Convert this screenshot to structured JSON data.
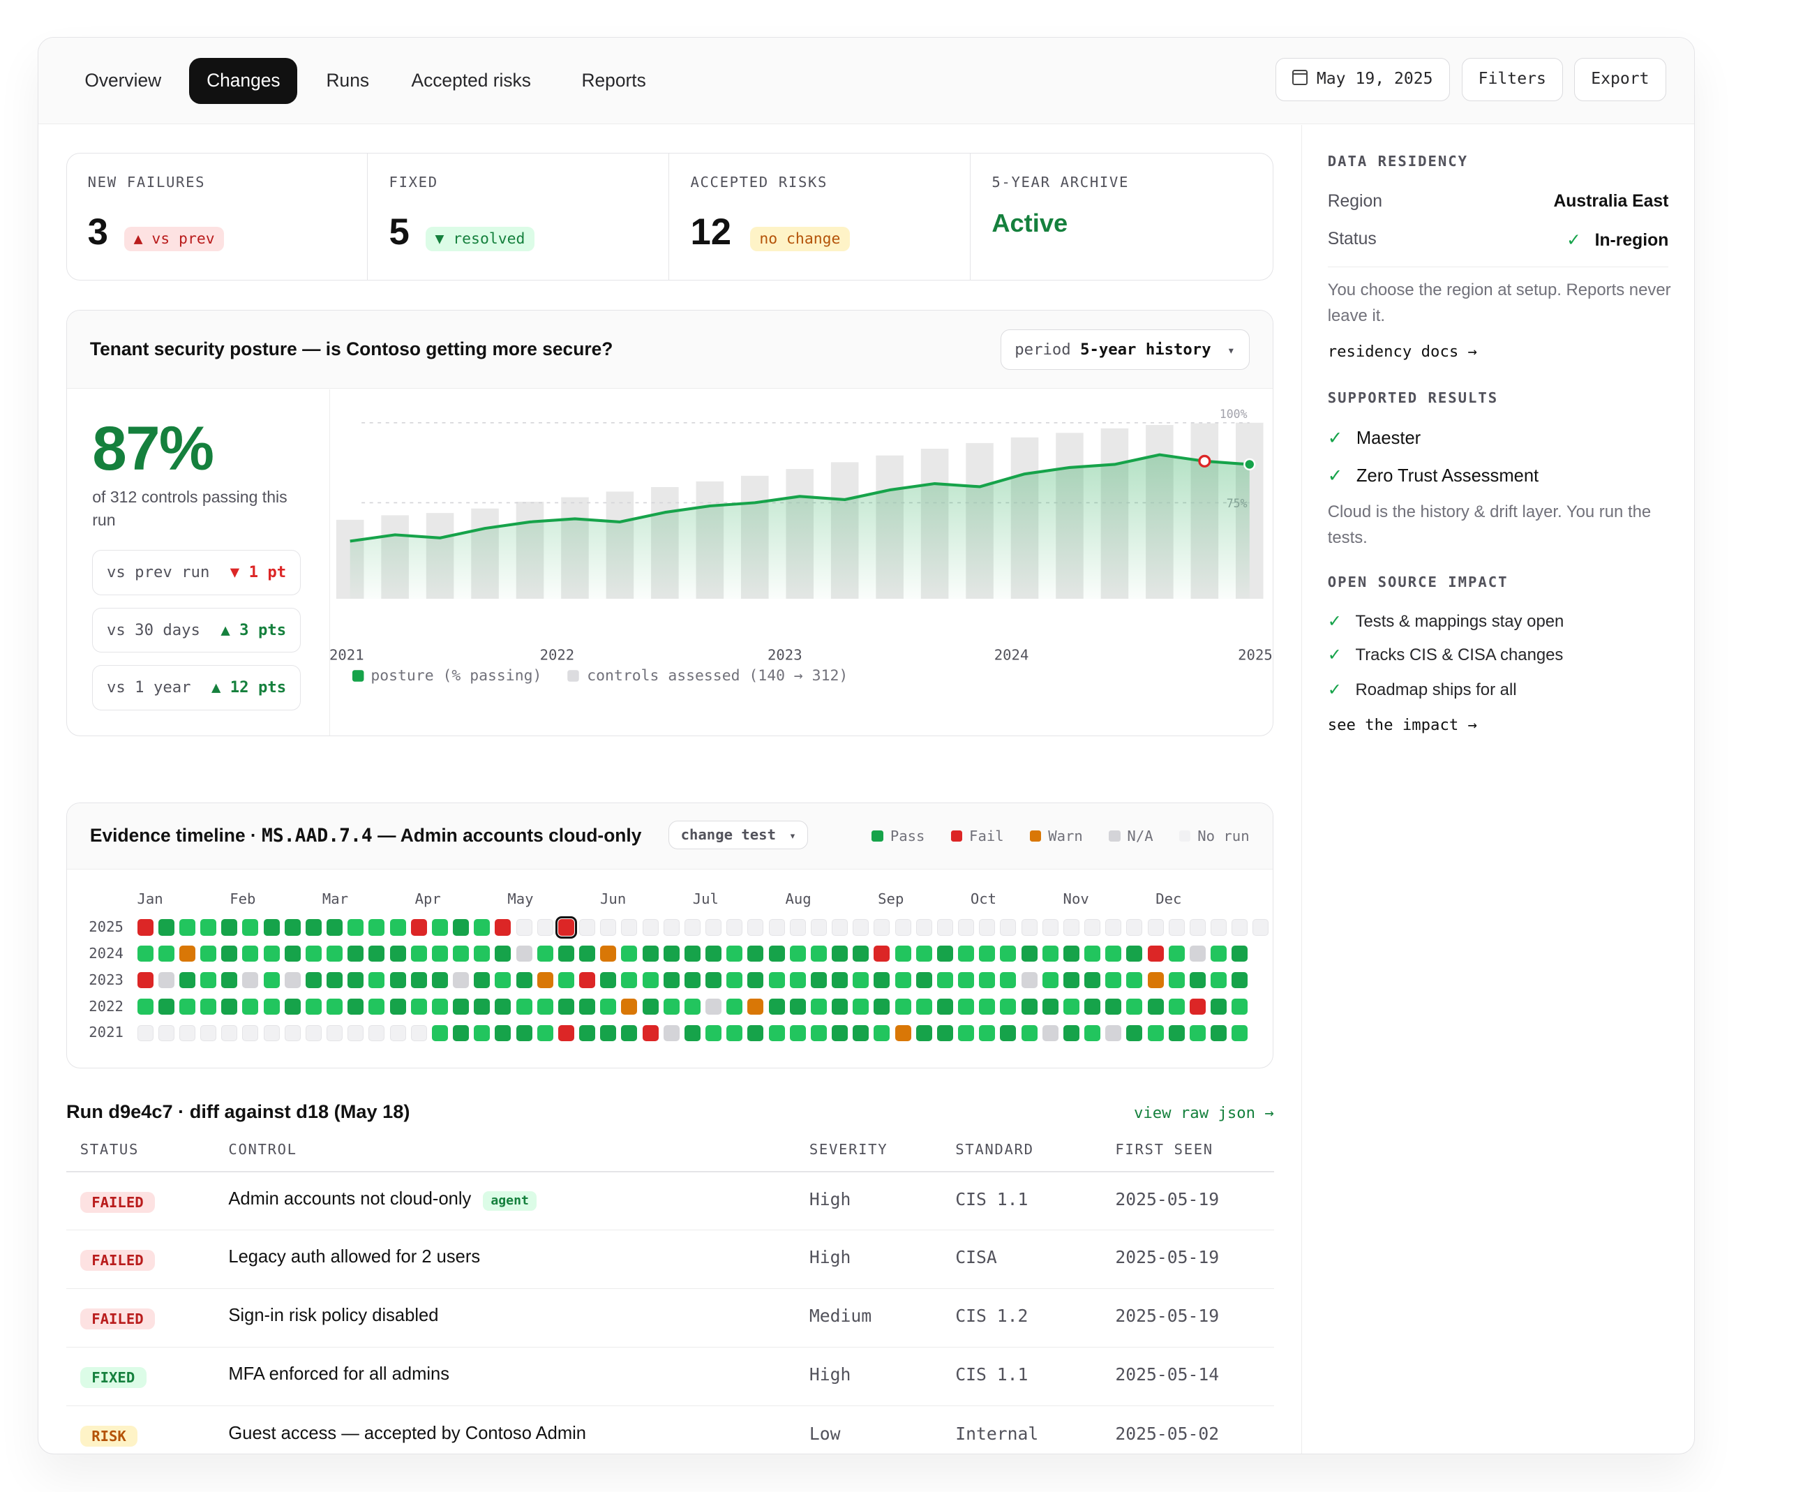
{
  "tabs": [
    "Overview",
    "Changes",
    "Runs",
    "Accepted risks",
    "Reports"
  ],
  "active_tab": "Changes",
  "toolbar": {
    "date": "May 19, 2025",
    "filters": "Filters",
    "export": "Export"
  },
  "stats": [
    {
      "label": "NEW FAILURES",
      "value": "3",
      "badge": "▲ vs prev"
    },
    {
      "label": "FIXED",
      "value": "5",
      "badge": "▼ resolved"
    },
    {
      "label": "ACCEPTED RISKS",
      "value": "12",
      "badge": "no change"
    },
    {
      "label": "5-YEAR ARCHIVE",
      "value": "Active"
    }
  ],
  "posture": {
    "title": "Tenant security posture — is Contoso getting more secure?",
    "period_label": "period",
    "period_value": "5-year history",
    "caret": "▾",
    "percent": "87%",
    "subtitle": "of 312 controls passing this run",
    "deltas": [
      {
        "label": "vs prev run",
        "value": "▼ 1 pt"
      },
      {
        "label": "vs 30 days",
        "value": "▲ 3 pts"
      },
      {
        "label": "vs 1 year",
        "value": "▲ 12 pts"
      }
    ]
  },
  "chart_data": {
    "type": "line",
    "x_ticks": [
      "2021",
      "2022",
      "2023",
      "2024",
      "2025"
    ],
    "y_ref_labels": [
      "100%",
      "75%"
    ],
    "series": [
      {
        "name": "posture (% passing)",
        "color": "#16a34a",
        "values": [
          63,
          65,
          64,
          67,
          69,
          70,
          69,
          72,
          74,
          75,
          77,
          76,
          79,
          81,
          80,
          84,
          86,
          87,
          90,
          88,
          87
        ]
      },
      {
        "name": "controls assessed (140 → 312)",
        "color": "#e8e8e8",
        "values": [
          140,
          148,
          152,
          160,
          172,
          180,
          190,
          198,
          208,
          218,
          230,
          242,
          254,
          266,
          276,
          286,
          294,
          302,
          308,
          311,
          312
        ]
      }
    ],
    "highlight_point_index": 19,
    "legend": [
      "posture (% passing)",
      "controls assessed (140 → 312)"
    ]
  },
  "timeline": {
    "title_prefix": "Evidence timeline ·",
    "control_id": "MS.AAD.7.4",
    "title_suffix": "— Admin accounts cloud-only",
    "change_test": "change test",
    "caret": "▾",
    "legend": [
      "Pass",
      "Fail",
      "Warn",
      "N/A",
      "No run"
    ],
    "months": [
      "Jan",
      "Feb",
      "Mar",
      "Apr",
      "May",
      "Jun",
      "Jul",
      "Aug",
      "Sep",
      "Oct",
      "Nov",
      "Dec"
    ],
    "years": [
      "2025",
      "2024",
      "2023",
      "2022",
      "2021"
    ],
    "colors": {
      "P": "#22c55e",
      "D": "#16a34a",
      "F": "#dc2626",
      "W": "#d97706",
      "N": "#d4d4d8",
      "E": "#f1f1f3"
    },
    "grid": [
      "FDPPDPDDDDPPPFPDPFEEEEEEEEEEEEEEEEEEEEEEEEEEEEEEEEEEEE",
      "PPWPDPPDPPDDDPPPPDNPDDWPDDDDPDDPPDDFPPDPPPDPDPPDFPNPD",
      "FNDPDNPNDDDPDDDNDPDWPFDPPDDDPDPPDDPDPDPPPPNPDDPPWPDPD",
      "PDPPDPPDPPDPDPPDDDPPDDPWDPPNPWDDPDPDPPDPPPDDPDDPDPFDP",
      "EEEEEEEEEEEEEEPDPDDPFDDDFNDPPDPPPDDPWDDPPDPNDPNDPDPDP"
    ],
    "highlight_cell": [
      0,
      20
    ]
  },
  "run_table": {
    "title": "Run d9e4c7 · diff against d18 (May 18)",
    "raw_link": "view raw json →",
    "headers": [
      "STATUS",
      "CONTROL",
      "SEVERITY",
      "STANDARD",
      "FIRST SEEN"
    ],
    "rows": [
      {
        "status": "FAILED",
        "kind": "fail",
        "control": "Admin accounts not cloud-only",
        "tag": "agent",
        "severity": "High",
        "standard": "CIS 1.1",
        "first_seen": "2025-05-19"
      },
      {
        "status": "FAILED",
        "kind": "fail",
        "control": "Legacy auth allowed for 2 users",
        "tag": "",
        "severity": "High",
        "standard": "CISA",
        "first_seen": "2025-05-19"
      },
      {
        "status": "FAILED",
        "kind": "fail",
        "control": "Sign-in risk policy disabled",
        "tag": "",
        "severity": "Medium",
        "standard": "CIS 1.2",
        "first_seen": "2025-05-19"
      },
      {
        "status": "FIXED",
        "kind": "fix",
        "control": "MFA enforced for all admins",
        "tag": "",
        "severity": "High",
        "standard": "CIS 1.1",
        "first_seen": "2025-05-14"
      },
      {
        "status": "RISK",
        "kind": "risk",
        "control": "Guest access — accepted by Contoso Admin",
        "tag": "",
        "severity": "Low",
        "standard": "Internal",
        "first_seen": "2025-05-02"
      }
    ]
  },
  "sidebar": {
    "residency": {
      "heading": "DATA RESIDENCY",
      "region_label": "Region",
      "region_value": "Australia East",
      "status_label": "Status",
      "status_value": "In-region",
      "note": "You choose the region at setup. Reports never leave it.",
      "link": "residency docs →"
    },
    "supported": {
      "heading": "SUPPORTED RESULTS",
      "items": [
        "Maester",
        "Zero Trust Assessment"
      ],
      "note": "Cloud is the history & drift layer. You run the tests."
    },
    "impact": {
      "heading": "OPEN SOURCE IMPACT",
      "items": [
        "Tests & mappings stay open",
        "Tracks CIS & CISA changes",
        "Roadmap ships for all"
      ],
      "link": "see the impact →"
    }
  }
}
